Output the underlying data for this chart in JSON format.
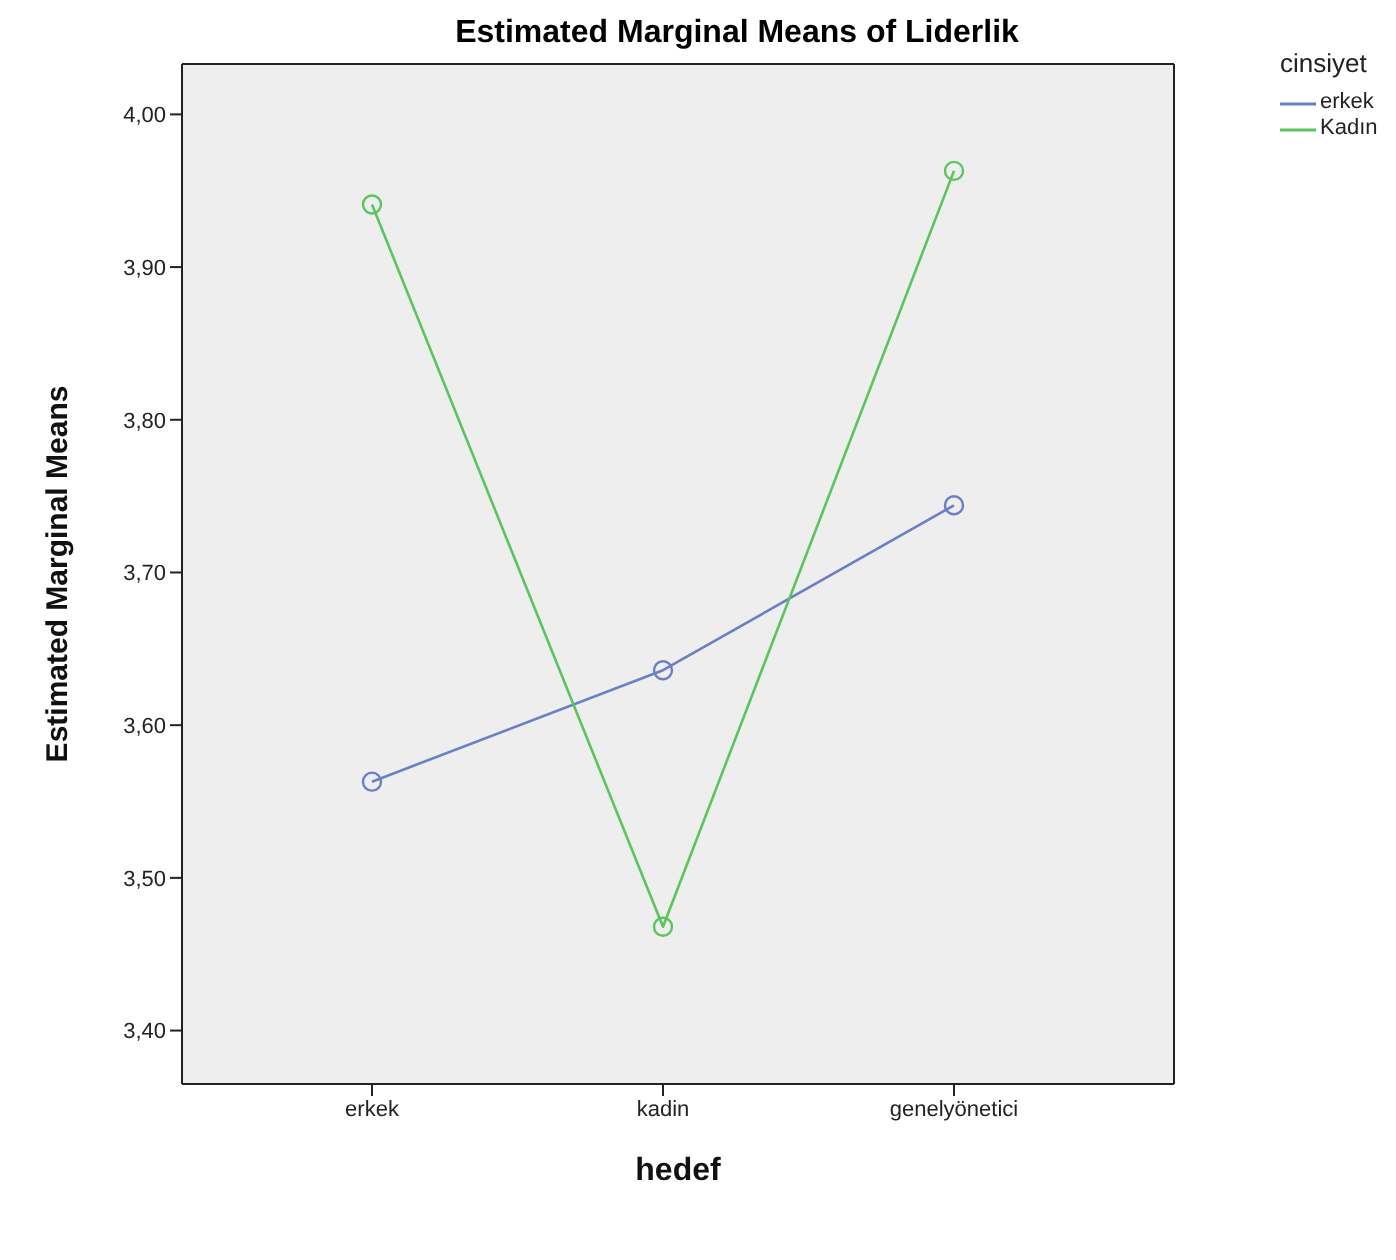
{
  "chart_data": {
    "type": "line",
    "title": "Estimated Marginal Means of Liderlik",
    "xlabel": "hedef",
    "ylabel": "Estimated Marginal Means",
    "legend_title": "cinsiyet",
    "categories": [
      "erkek",
      "kadin",
      "genelyönetici"
    ],
    "series": [
      {
        "name": "erkek",
        "color": "#6b7fc4",
        "values": [
          3.563,
          3.636,
          3.744
        ]
      },
      {
        "name": "Kadın",
        "color": "#5cc45c",
        "values": [
          3.941,
          3.468,
          3.963
        ]
      }
    ],
    "ylim": [
      3.365,
      4.033
    ],
    "yticks": [
      {
        "value": 3.4,
        "label": "3,40"
      },
      {
        "value": 3.5,
        "label": "3,50"
      },
      {
        "value": 3.6,
        "label": "3,60"
      },
      {
        "value": 3.7,
        "label": "3,70"
      },
      {
        "value": 3.8,
        "label": "3,80"
      },
      {
        "value": 3.9,
        "label": "3,90"
      },
      {
        "value": 4,
        "label": "4,00"
      }
    ],
    "grid": false,
    "legend": "top right",
    "marker": "circle",
    "line_style": "solid"
  }
}
